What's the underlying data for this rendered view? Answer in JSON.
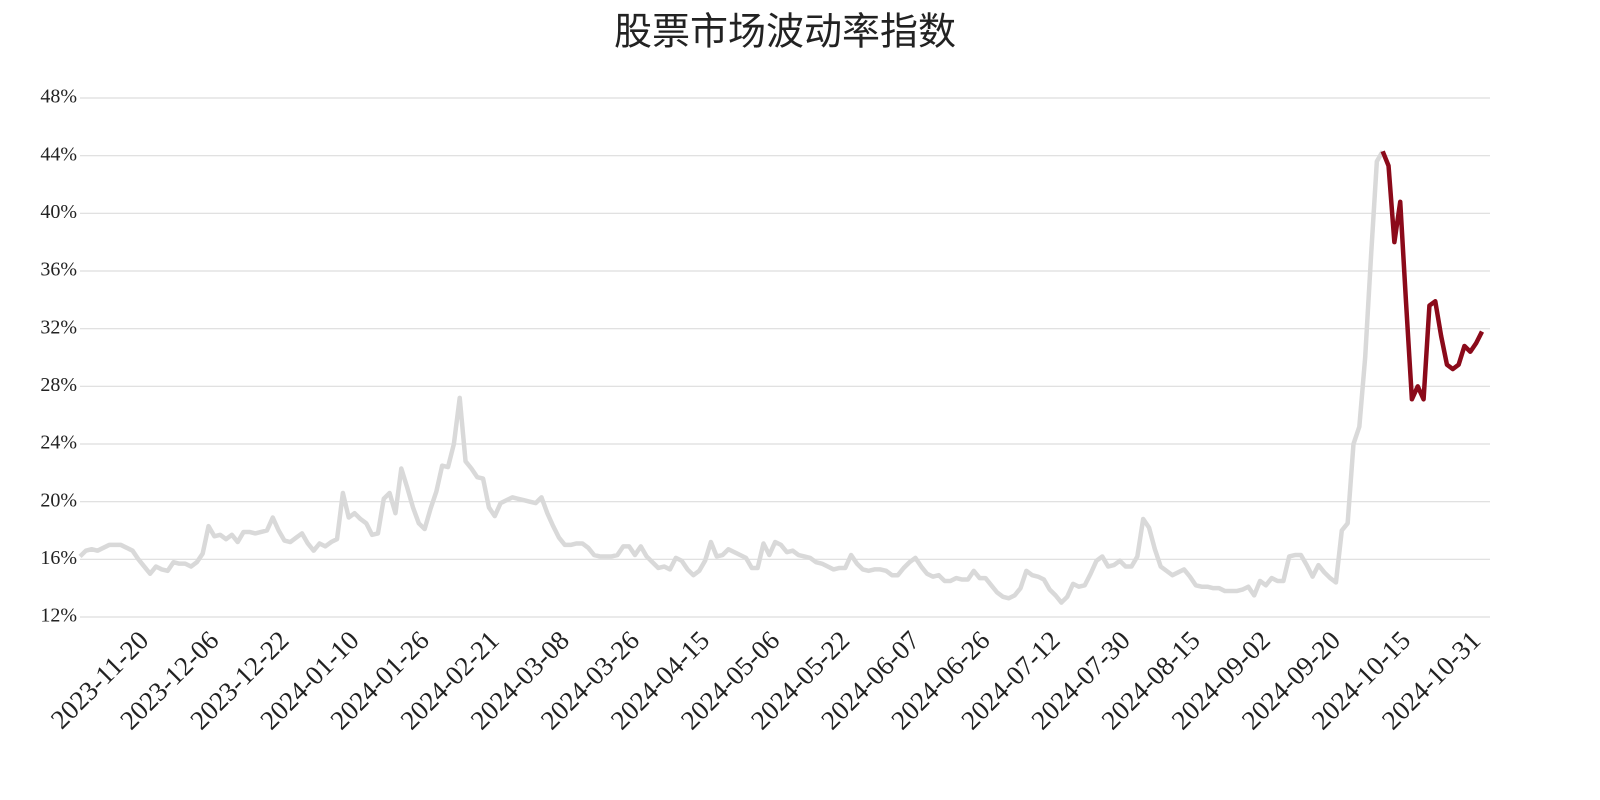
{
  "chart_data": {
    "type": "line",
    "title": "股票市场波动率指数",
    "categories": [
      null,
      null,
      null,
      null,
      null,
      null,
      null,
      null,
      null,
      null,
      null,
      null,
      "2023-11-20",
      null,
      null,
      null,
      null,
      null,
      null,
      null,
      null,
      null,
      null,
      null,
      "2023-12-06",
      null,
      null,
      null,
      null,
      null,
      null,
      null,
      null,
      null,
      null,
      null,
      "2023-12-22",
      null,
      null,
      null,
      null,
      null,
      null,
      null,
      null,
      null,
      null,
      null,
      "2024-01-10",
      null,
      null,
      null,
      null,
      null,
      null,
      null,
      null,
      null,
      null,
      null,
      "2024-01-26",
      null,
      null,
      null,
      null,
      null,
      null,
      null,
      null,
      null,
      null,
      null,
      "2024-02-21",
      null,
      null,
      null,
      null,
      null,
      null,
      null,
      null,
      null,
      null,
      null,
      "2024-03-08",
      null,
      null,
      null,
      null,
      null,
      null,
      null,
      null,
      null,
      null,
      null,
      "2024-03-26",
      null,
      null,
      null,
      null,
      null,
      null,
      null,
      null,
      null,
      null,
      null,
      "2024-04-15",
      null,
      null,
      null,
      null,
      null,
      null,
      null,
      null,
      null,
      null,
      null,
      "2024-05-06",
      null,
      null,
      null,
      null,
      null,
      null,
      null,
      null,
      null,
      null,
      null,
      "2024-05-22",
      null,
      null,
      null,
      null,
      null,
      null,
      null,
      null,
      null,
      null,
      null,
      "2024-06-07",
      null,
      null,
      null,
      null,
      null,
      null,
      null,
      null,
      null,
      null,
      null,
      "2024-06-26",
      null,
      null,
      null,
      null,
      null,
      null,
      null,
      null,
      null,
      null,
      null,
      "2024-07-12",
      null,
      null,
      null,
      null,
      null,
      null,
      null,
      null,
      null,
      null,
      null,
      "2024-07-30",
      null,
      null,
      null,
      null,
      null,
      null,
      null,
      null,
      null,
      null,
      null,
      "2024-08-15",
      null,
      null,
      null,
      null,
      null,
      null,
      null,
      null,
      null,
      null,
      null,
      "2024-09-02",
      null,
      null,
      null,
      null,
      null,
      null,
      null,
      null,
      null,
      null,
      null,
      "2024-09-20",
      null,
      null,
      null,
      null,
      null,
      null,
      null,
      null,
      null,
      null,
      null,
      "2024-10-15",
      null,
      null,
      null,
      null,
      null,
      null,
      null,
      null,
      null,
      null,
      null,
      "2024-10-31"
    ],
    "series": [
      {
        "color": "#d9d9d9",
        "values": [
          16.2,
          16.6,
          16.7,
          16.6,
          16.8,
          17.0,
          17.0,
          17.0,
          16.8,
          16.6,
          16.0,
          15.5,
          15.0,
          15.5,
          15.3,
          15.2,
          15.8,
          15.7,
          15.7,
          15.5,
          15.8,
          16.4,
          18.3,
          17.6,
          17.7,
          17.4,
          17.7,
          17.2,
          17.9,
          17.9,
          17.8,
          17.9,
          18.0,
          18.9,
          18.0,
          17.3,
          17.2,
          17.5,
          17.8,
          17.1,
          16.6,
          17.1,
          16.9,
          17.2,
          17.4,
          20.6,
          18.9,
          19.2,
          18.8,
          18.5,
          17.7,
          17.8,
          20.2,
          20.6,
          19.2,
          22.3,
          21.0,
          19.6,
          18.5,
          18.1,
          19.5,
          20.7,
          22.5,
          22.4,
          24.0,
          27.2,
          22.8,
          22.3,
          21.7,
          21.6,
          19.6,
          19.0,
          19.9,
          20.1,
          20.3,
          20.2,
          20.1,
          20.0,
          19.9,
          20.3,
          19.2,
          18.3,
          17.5,
          17.0,
          17.0,
          17.1,
          17.1,
          16.8,
          16.3,
          16.2,
          16.2,
          16.2,
          16.3,
          16.9,
          16.9,
          16.3,
          16.9,
          16.2,
          15.8,
          15.4,
          15.5,
          15.3,
          16.1,
          15.9,
          15.3,
          14.9,
          15.2,
          15.9,
          17.2,
          16.2,
          16.3,
          16.7,
          16.5,
          16.3,
          16.1,
          15.4,
          15.4,
          17.1,
          16.3,
          17.2,
          17.0,
          16.5,
          16.6,
          16.3,
          16.2,
          16.1,
          15.8,
          15.7,
          15.5,
          15.3,
          15.4,
          15.4,
          16.3,
          15.7,
          15.3,
          15.2,
          15.3,
          15.3,
          15.2,
          14.9,
          14.9,
          15.4,
          15.8,
          16.1,
          15.5,
          15.0,
          14.8,
          14.9,
          14.5,
          14.5,
          14.7,
          14.6,
          14.6,
          15.2,
          14.7,
          14.7,
          14.2,
          13.7,
          13.4,
          13.3,
          13.5,
          14.0,
          15.2,
          14.9,
          14.8,
          14.6,
          13.9,
          13.5,
          13.0,
          13.4,
          14.3,
          14.1,
          14.2,
          15.0,
          15.9,
          16.2,
          15.5,
          15.6,
          15.9,
          15.5,
          15.5,
          16.2,
          18.8,
          18.2,
          16.7,
          15.5,
          15.2,
          14.9,
          15.1,
          15.3,
          14.8,
          14.2,
          14.1,
          14.1,
          14.0,
          14.0,
          13.8,
          13.8,
          13.8,
          13.9,
          14.1,
          13.5,
          14.5,
          14.2,
          14.7,
          14.5,
          14.5,
          16.2,
          16.3,
          16.3,
          15.6,
          14.8,
          15.6,
          15.1,
          14.7,
          14.4,
          18.0,
          18.5,
          24.0,
          25.2,
          30.0,
          37.0,
          43.6,
          44.3,
          null,
          null,
          null,
          null,
          null,
          null,
          null,
          null,
          null,
          null,
          null,
          null,
          null,
          null,
          null,
          null,
          null
        ]
      },
      {
        "color": "#8b0a1a",
        "values": [
          null,
          null,
          null,
          null,
          null,
          null,
          null,
          null,
          null,
          null,
          null,
          null,
          null,
          null,
          null,
          null,
          null,
          null,
          null,
          null,
          null,
          null,
          null,
          null,
          null,
          null,
          null,
          null,
          null,
          null,
          null,
          null,
          null,
          null,
          null,
          null,
          null,
          null,
          null,
          null,
          null,
          null,
          null,
          null,
          null,
          null,
          null,
          null,
          null,
          null,
          null,
          null,
          null,
          null,
          null,
          null,
          null,
          null,
          null,
          null,
          null,
          null,
          null,
          null,
          null,
          null,
          null,
          null,
          null,
          null,
          null,
          null,
          null,
          null,
          null,
          null,
          null,
          null,
          null,
          null,
          null,
          null,
          null,
          null,
          null,
          null,
          null,
          null,
          null,
          null,
          null,
          null,
          null,
          null,
          null,
          null,
          null,
          null,
          null,
          null,
          null,
          null,
          null,
          null,
          null,
          null,
          null,
          null,
          null,
          null,
          null,
          null,
          null,
          null,
          null,
          null,
          null,
          null,
          null,
          null,
          null,
          null,
          null,
          null,
          null,
          null,
          null,
          null,
          null,
          null,
          null,
          null,
          null,
          null,
          null,
          null,
          null,
          null,
          null,
          null,
          null,
          null,
          null,
          null,
          null,
          null,
          null,
          null,
          null,
          null,
          null,
          null,
          null,
          null,
          null,
          null,
          null,
          null,
          null,
          null,
          null,
          null,
          null,
          null,
          null,
          null,
          null,
          null,
          null,
          null,
          null,
          null,
          null,
          null,
          null,
          null,
          null,
          null,
          null,
          null,
          null,
          null,
          null,
          null,
          null,
          null,
          null,
          null,
          null,
          null,
          null,
          null,
          null,
          null,
          null,
          null,
          null,
          null,
          null,
          null,
          null,
          null,
          null,
          null,
          null,
          null,
          null,
          null,
          null,
          null,
          null,
          null,
          null,
          null,
          null,
          null,
          null,
          null,
          null,
          null,
          null,
          null,
          null,
          44.3,
          43.3,
          38.0,
          40.8,
          33.8,
          27.1,
          28.0,
          27.1,
          33.6,
          33.9,
          31.5,
          29.5,
          29.2,
          29.5,
          30.8,
          30.4,
          31.0,
          31.8
        ]
      }
    ],
    "ylim": [
      12,
      48
    ],
    "yticks": [
      {
        "value": 12,
        "label": "12%"
      },
      {
        "value": 16,
        "label": "16%"
      },
      {
        "value": 20,
        "label": "20%"
      },
      {
        "value": 24,
        "label": "24%"
      },
      {
        "value": 28,
        "label": "28%"
      },
      {
        "value": 32,
        "label": "32%"
      },
      {
        "value": 36,
        "label": "36%"
      },
      {
        "value": 40,
        "label": "40%"
      },
      {
        "value": 44,
        "label": "44%"
      },
      {
        "value": 48,
        "label": "48%"
      }
    ],
    "grid": true
  }
}
